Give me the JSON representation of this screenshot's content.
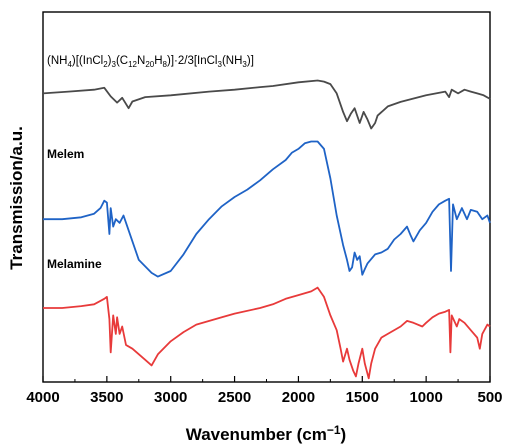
{
  "chart_data": {
    "type": "line",
    "xlabel": "Wavenumber (cm",
    "xlabel_sup": "−1",
    "xlabel_tail": ")",
    "ylabel": "Transmission/a.u.",
    "xlim": [
      4000,
      500
    ],
    "x_reversed": true,
    "xticks": [
      4000,
      3500,
      3000,
      2500,
      2000,
      1500,
      1000,
      500
    ],
    "yticks_shown": false,
    "grid": false,
    "series": [
      {
        "name": "(NH4)[(InCl2)3(C12N20H8)]·2/3[InCl3(NH3)]",
        "label_parts": [
          {
            "t": "(NH"
          },
          {
            "t": "4",
            "sub": true
          },
          {
            "t": ")[(InCl"
          },
          {
            "t": "2",
            "sub": true
          },
          {
            "t": ")"
          },
          {
            "t": "3",
            "sub": true
          },
          {
            "t": "(C"
          },
          {
            "t": "12",
            "sub": true
          },
          {
            "t": "N"
          },
          {
            "t": "20",
            "sub": true
          },
          {
            "t": "H"
          },
          {
            "t": "8",
            "sub": true
          },
          {
            "t": ")]·2/3[InCl"
          },
          {
            "t": "3",
            "sub": true
          },
          {
            "t": "(NH"
          },
          {
            "t": "3",
            "sub": true
          },
          {
            "t": ")]"
          }
        ],
        "color": "#4a4a4a",
        "points": [
          [
            4000,
            0.78
          ],
          [
            3800,
            0.785
          ],
          [
            3600,
            0.79
          ],
          [
            3520,
            0.795
          ],
          [
            3470,
            0.772
          ],
          [
            3420,
            0.755
          ],
          [
            3380,
            0.768
          ],
          [
            3330,
            0.74
          ],
          [
            3300,
            0.758
          ],
          [
            3200,
            0.77
          ],
          [
            3000,
            0.775
          ],
          [
            2700,
            0.785
          ],
          [
            2500,
            0.79
          ],
          [
            2300,
            0.797
          ],
          [
            2200,
            0.8
          ],
          [
            2000,
            0.81
          ],
          [
            1850,
            0.815
          ],
          [
            1800,
            0.812
          ],
          [
            1750,
            0.805
          ],
          [
            1700,
            0.78
          ],
          [
            1650,
            0.73
          ],
          [
            1620,
            0.705
          ],
          [
            1590,
            0.725
          ],
          [
            1560,
            0.74
          ],
          [
            1520,
            0.7
          ],
          [
            1490,
            0.73
          ],
          [
            1460,
            0.71
          ],
          [
            1430,
            0.685
          ],
          [
            1400,
            0.7
          ],
          [
            1380,
            0.72
          ],
          [
            1300,
            0.745
          ],
          [
            1200,
            0.757
          ],
          [
            1000,
            0.775
          ],
          [
            850,
            0.785
          ],
          [
            820,
            0.77
          ],
          [
            800,
            0.79
          ],
          [
            750,
            0.78
          ],
          [
            700,
            0.79
          ],
          [
            650,
            0.785
          ],
          [
            600,
            0.78
          ],
          [
            550,
            0.775
          ],
          [
            500,
            0.765
          ]
        ]
      },
      {
        "name": "Melem",
        "color": "#1f63c6",
        "points": [
          [
            4000,
            0.44
          ],
          [
            3850,
            0.44
          ],
          [
            3700,
            0.445
          ],
          [
            3600,
            0.455
          ],
          [
            3550,
            0.47
          ],
          [
            3520,
            0.49
          ],
          [
            3500,
            0.485
          ],
          [
            3480,
            0.4
          ],
          [
            3470,
            0.47
          ],
          [
            3450,
            0.42
          ],
          [
            3430,
            0.44
          ],
          [
            3400,
            0.43
          ],
          [
            3370,
            0.45
          ],
          [
            3330,
            0.41
          ],
          [
            3250,
            0.33
          ],
          [
            3150,
            0.295
          ],
          [
            3100,
            0.285
          ],
          [
            3000,
            0.3
          ],
          [
            2900,
            0.345
          ],
          [
            2800,
            0.4
          ],
          [
            2700,
            0.44
          ],
          [
            2600,
            0.475
          ],
          [
            2500,
            0.5
          ],
          [
            2400,
            0.52
          ],
          [
            2300,
            0.545
          ],
          [
            2200,
            0.575
          ],
          [
            2100,
            0.6
          ],
          [
            2050,
            0.62
          ],
          [
            2000,
            0.63
          ],
          [
            1950,
            0.645
          ],
          [
            1900,
            0.65
          ],
          [
            1850,
            0.65
          ],
          [
            1800,
            0.63
          ],
          [
            1750,
            0.55
          ],
          [
            1700,
            0.45
          ],
          [
            1650,
            0.37
          ],
          [
            1620,
            0.33
          ],
          [
            1600,
            0.3
          ],
          [
            1580,
            0.31
          ],
          [
            1560,
            0.35
          ],
          [
            1540,
            0.33
          ],
          [
            1520,
            0.34
          ],
          [
            1500,
            0.29
          ],
          [
            1480,
            0.305
          ],
          [
            1460,
            0.32
          ],
          [
            1400,
            0.345
          ],
          [
            1350,
            0.35
          ],
          [
            1300,
            0.36
          ],
          [
            1250,
            0.385
          ],
          [
            1200,
            0.4
          ],
          [
            1150,
            0.42
          ],
          [
            1120,
            0.395
          ],
          [
            1100,
            0.38
          ],
          [
            1050,
            0.41
          ],
          [
            1000,
            0.43
          ],
          [
            950,
            0.46
          ],
          [
            900,
            0.48
          ],
          [
            850,
            0.49
          ],
          [
            820,
            0.495
          ],
          [
            805,
            0.3
          ],
          [
            790,
            0.48
          ],
          [
            760,
            0.44
          ],
          [
            720,
            0.47
          ],
          [
            680,
            0.44
          ],
          [
            650,
            0.465
          ],
          [
            600,
            0.46
          ],
          [
            560,
            0.44
          ],
          [
            520,
            0.45
          ],
          [
            500,
            0.43
          ]
        ]
      },
      {
        "name": "Melamine",
        "color": "#e83a3a",
        "points": [
          [
            4000,
            0.2
          ],
          [
            3850,
            0.2
          ],
          [
            3700,
            0.205
          ],
          [
            3600,
            0.21
          ],
          [
            3520,
            0.225
          ],
          [
            3500,
            0.23
          ],
          [
            3480,
            0.17
          ],
          [
            3470,
            0.08
          ],
          [
            3450,
            0.18
          ],
          [
            3430,
            0.13
          ],
          [
            3420,
            0.175
          ],
          [
            3400,
            0.13
          ],
          [
            3380,
            0.15
          ],
          [
            3350,
            0.1
          ],
          [
            3300,
            0.09
          ],
          [
            3200,
            0.06
          ],
          [
            3150,
            0.045
          ],
          [
            3100,
            0.075
          ],
          [
            3000,
            0.11
          ],
          [
            2900,
            0.135
          ],
          [
            2800,
            0.155
          ],
          [
            2600,
            0.175
          ],
          [
            2500,
            0.185
          ],
          [
            2300,
            0.2
          ],
          [
            2200,
            0.21
          ],
          [
            2100,
            0.225
          ],
          [
            2000,
            0.235
          ],
          [
            1900,
            0.245
          ],
          [
            1850,
            0.255
          ],
          [
            1800,
            0.23
          ],
          [
            1750,
            0.18
          ],
          [
            1700,
            0.14
          ],
          [
            1670,
            0.09
          ],
          [
            1650,
            0.055
          ],
          [
            1620,
            0.09
          ],
          [
            1600,
            0.06
          ],
          [
            1570,
            0.03
          ],
          [
            1550,
            0.015
          ],
          [
            1530,
            0.05
          ],
          [
            1500,
            0.09
          ],
          [
            1480,
            0.05
          ],
          [
            1450,
            0.01
          ],
          [
            1430,
            0.05
          ],
          [
            1400,
            0.09
          ],
          [
            1350,
            0.12
          ],
          [
            1300,
            0.13
          ],
          [
            1200,
            0.15
          ],
          [
            1150,
            0.165
          ],
          [
            1100,
            0.16
          ],
          [
            1030,
            0.15
          ],
          [
            1000,
            0.16
          ],
          [
            950,
            0.175
          ],
          [
            900,
            0.185
          ],
          [
            850,
            0.19
          ],
          [
            820,
            0.195
          ],
          [
            810,
            0.08
          ],
          [
            800,
            0.18
          ],
          [
            760,
            0.15
          ],
          [
            740,
            0.17
          ],
          [
            700,
            0.16
          ],
          [
            650,
            0.14
          ],
          [
            600,
            0.12
          ],
          [
            580,
            0.09
          ],
          [
            560,
            0.13
          ],
          [
            520,
            0.155
          ],
          [
            500,
            0.15
          ]
        ]
      }
    ]
  }
}
